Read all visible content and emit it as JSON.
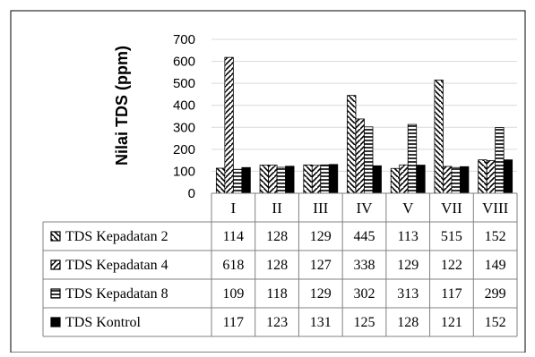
{
  "chart_data": {
    "type": "bar",
    "ylabel": "Nilai TDS (ppm)",
    "ylim": [
      0,
      700
    ],
    "yticks": [
      0,
      100,
      200,
      300,
      400,
      500,
      600,
      700
    ],
    "grid": true,
    "categories": [
      "I",
      "II",
      "III",
      "IV",
      "V",
      "VII",
      "VIII"
    ],
    "series": [
      {
        "name": "TDS Kepadatan 2",
        "pattern": "diag-back",
        "values": [
          114,
          128,
          129,
          445,
          113,
          515,
          152
        ]
      },
      {
        "name": "TDS Kepadatan 4",
        "pattern": "diag-forward",
        "values": [
          618,
          128,
          127,
          338,
          129,
          122,
          149
        ]
      },
      {
        "name": "TDS Kepadatan 8",
        "pattern": "horizontal",
        "values": [
          109,
          118,
          129,
          302,
          313,
          117,
          299
        ]
      },
      {
        "name": "TDS Kontrol",
        "pattern": "solid",
        "values": [
          117,
          123,
          131,
          125,
          128,
          121,
          152
        ]
      }
    ],
    "data_table": true,
    "colors": {
      "bar": "#000000",
      "grid": "#d9d9d9",
      "border": "#000000",
      "table_line": "#808080"
    }
  }
}
